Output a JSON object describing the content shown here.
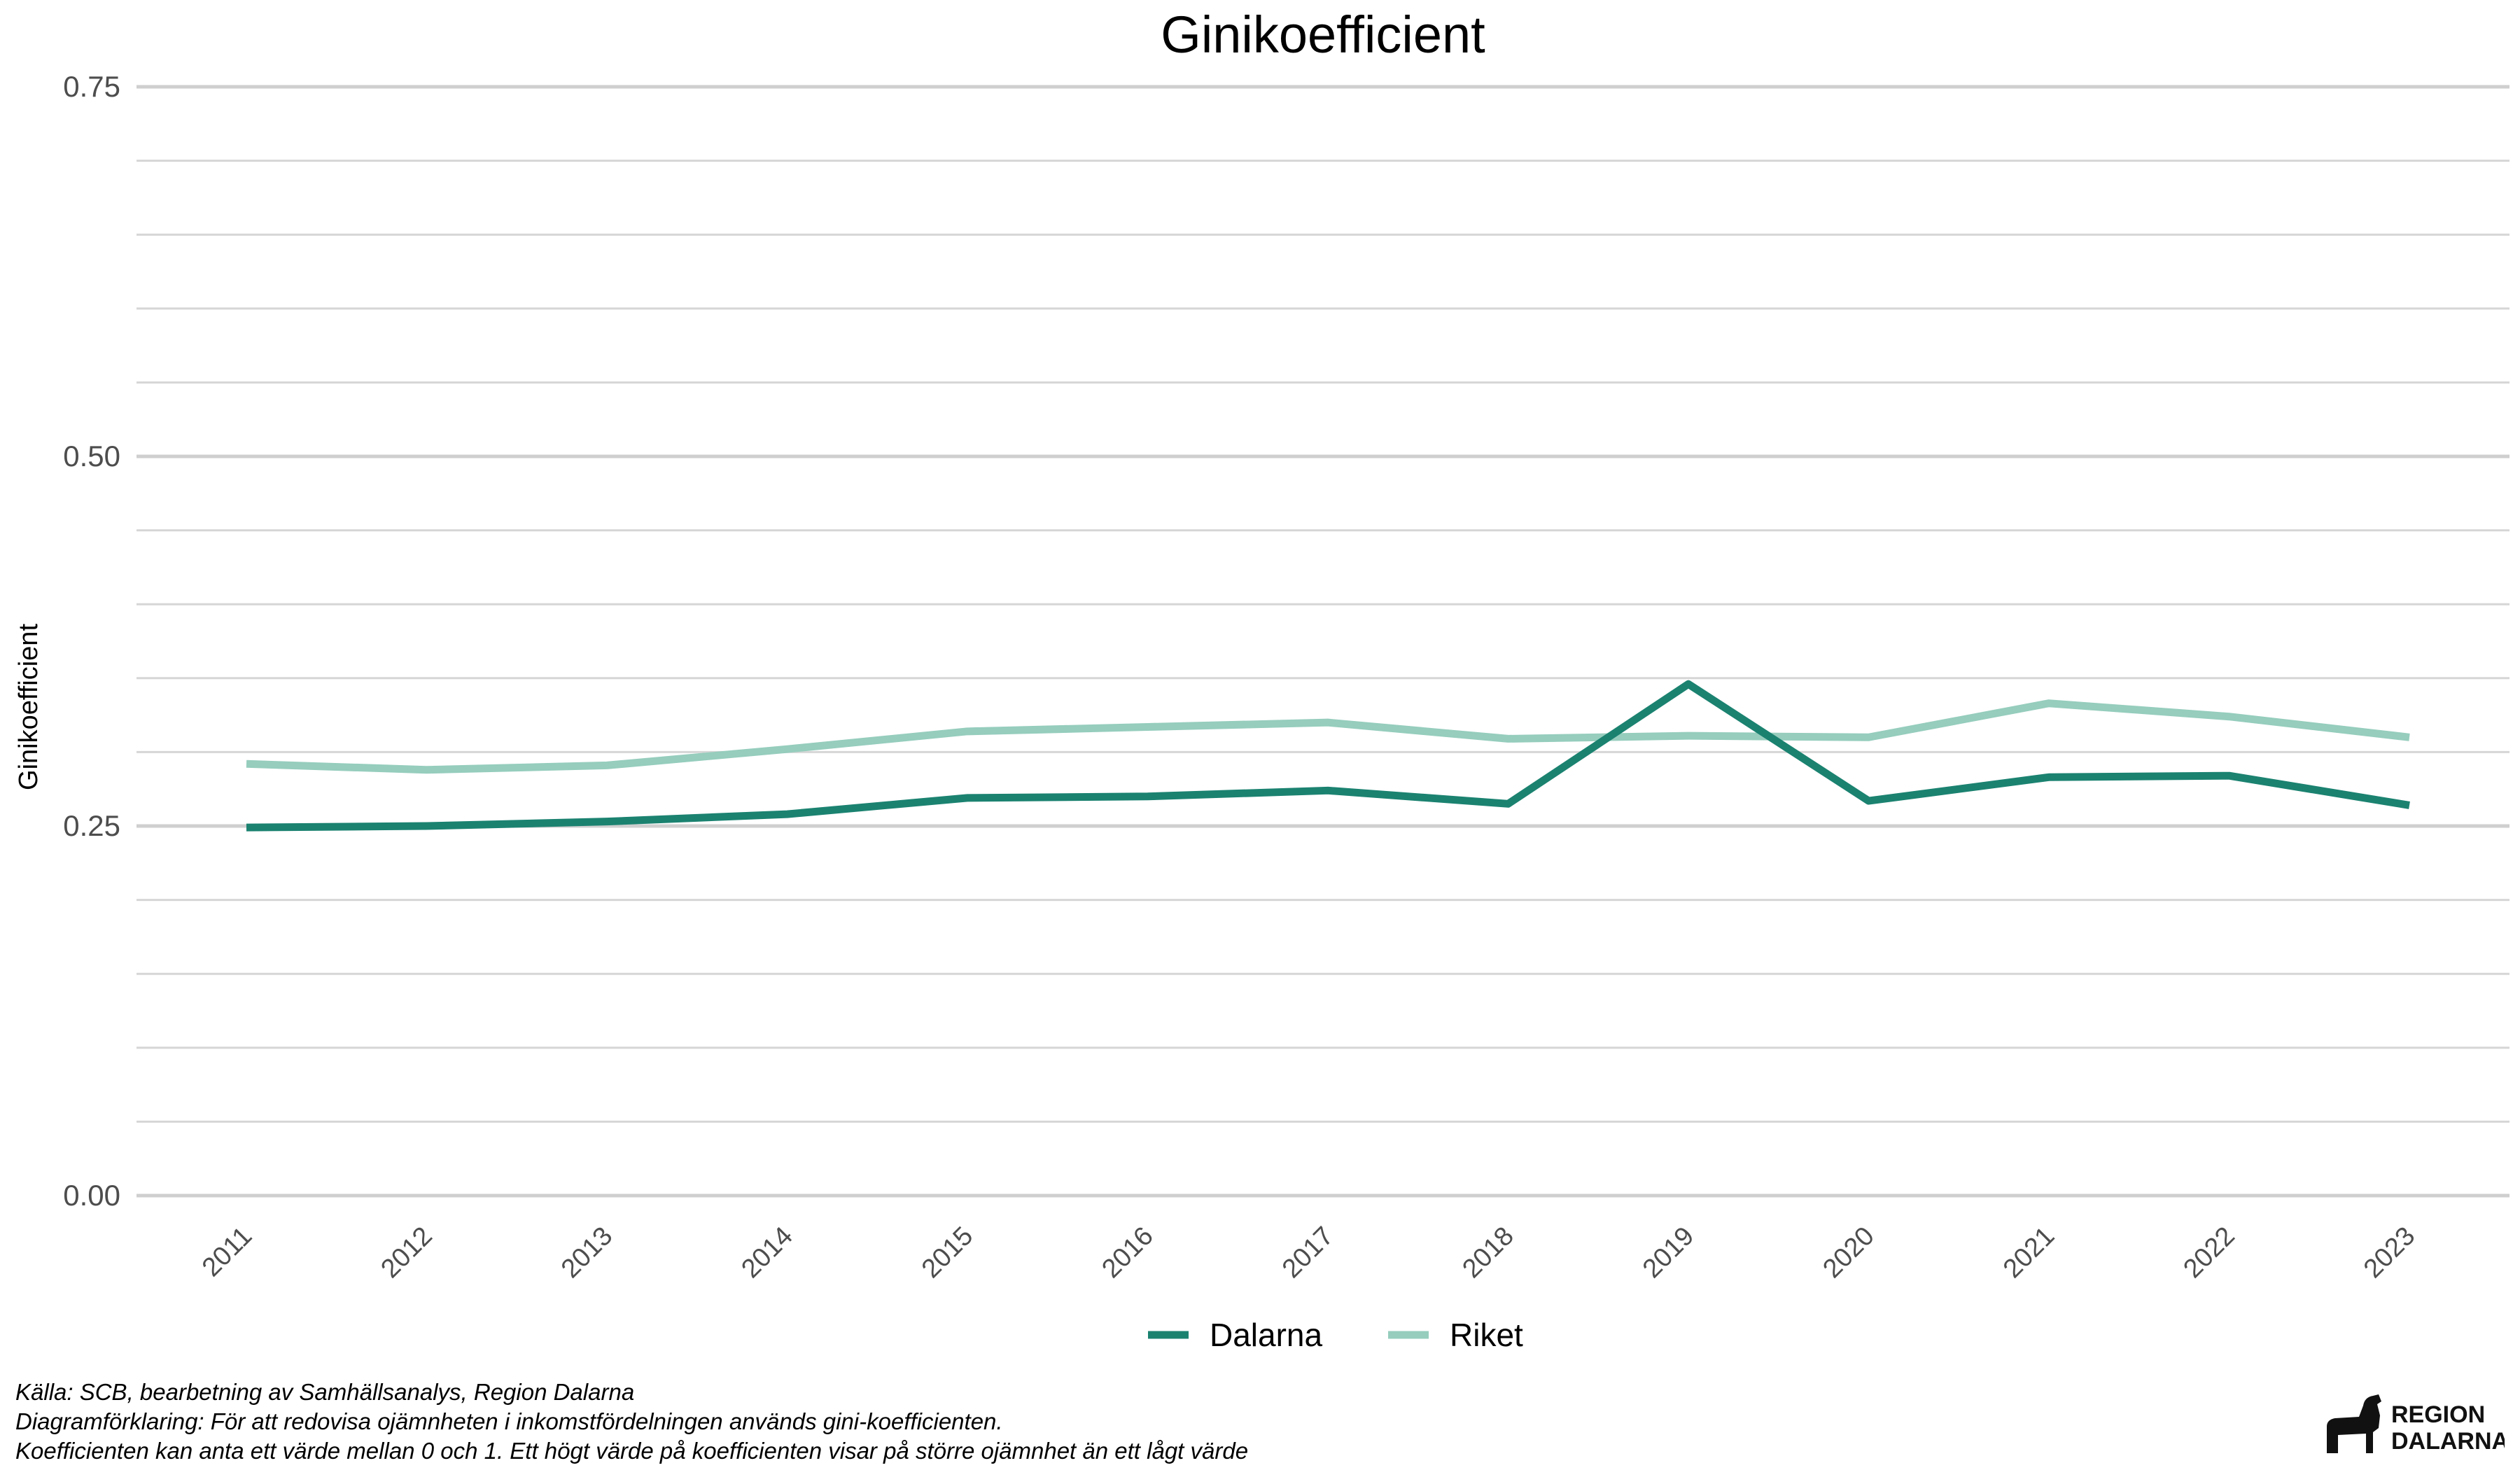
{
  "chart_data": {
    "type": "line",
    "title": "Ginikoefficient",
    "xlabel": "",
    "ylabel": "Ginikoefficient",
    "x": [
      "2011",
      "2012",
      "2013",
      "2014",
      "2015",
      "2016",
      "2017",
      "2018",
      "2019",
      "2020",
      "2021",
      "2022",
      "2023"
    ],
    "ylim": [
      0,
      0.75
    ],
    "yticks": [
      "0.00",
      "0.25",
      "0.50",
      "0.75"
    ],
    "series": [
      {
        "name": "Dalarna",
        "color": "#1b8270",
        "values": [
          0.249,
          0.25,
          0.253,
          0.258,
          0.269,
          0.27,
          0.274,
          0.265,
          0.346,
          0.267,
          0.283,
          0.284,
          0.264
        ]
      },
      {
        "name": "Riket",
        "color": "#96cdbd",
        "values": [
          0.292,
          0.288,
          0.291,
          0.302,
          0.314,
          0.317,
          0.32,
          0.309,
          0.311,
          0.31,
          0.333,
          0.324,
          0.31
        ]
      }
    ],
    "grid": true,
    "legend_position": "bottom"
  },
  "captions": {
    "line1": "Källa: SCB, bearbetning av Samhällsanalys, Region Dalarna",
    "line2": "Diagramförklaring: För att redovisa ojämnheten i inkomstfördelningen används gini-koefficienten.",
    "line3": "Koefficienten kan anta ett värde mellan 0 och 1. Ett högt värde på koefficienten visar på större ojämnhet än ett lågt värde"
  },
  "logo": {
    "line1": "REGION",
    "line2": "DALARNA"
  }
}
